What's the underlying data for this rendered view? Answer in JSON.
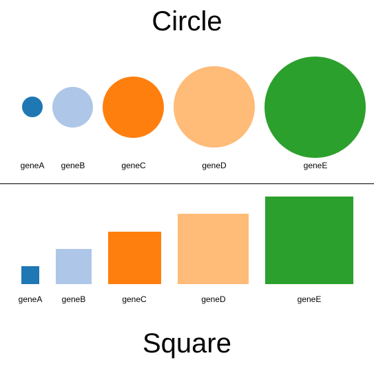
{
  "titles": {
    "circle": "Circle",
    "square": "Square"
  },
  "genes": [
    {
      "name": "geneA",
      "color": "#1f77b4"
    },
    {
      "name": "geneB",
      "color": "#aec7e8"
    },
    {
      "name": "geneC",
      "color": "#ff7f0e"
    },
    {
      "name": "geneD",
      "color": "#ffbb78"
    },
    {
      "name": "geneE",
      "color": "#2ca02c"
    }
  ]
}
